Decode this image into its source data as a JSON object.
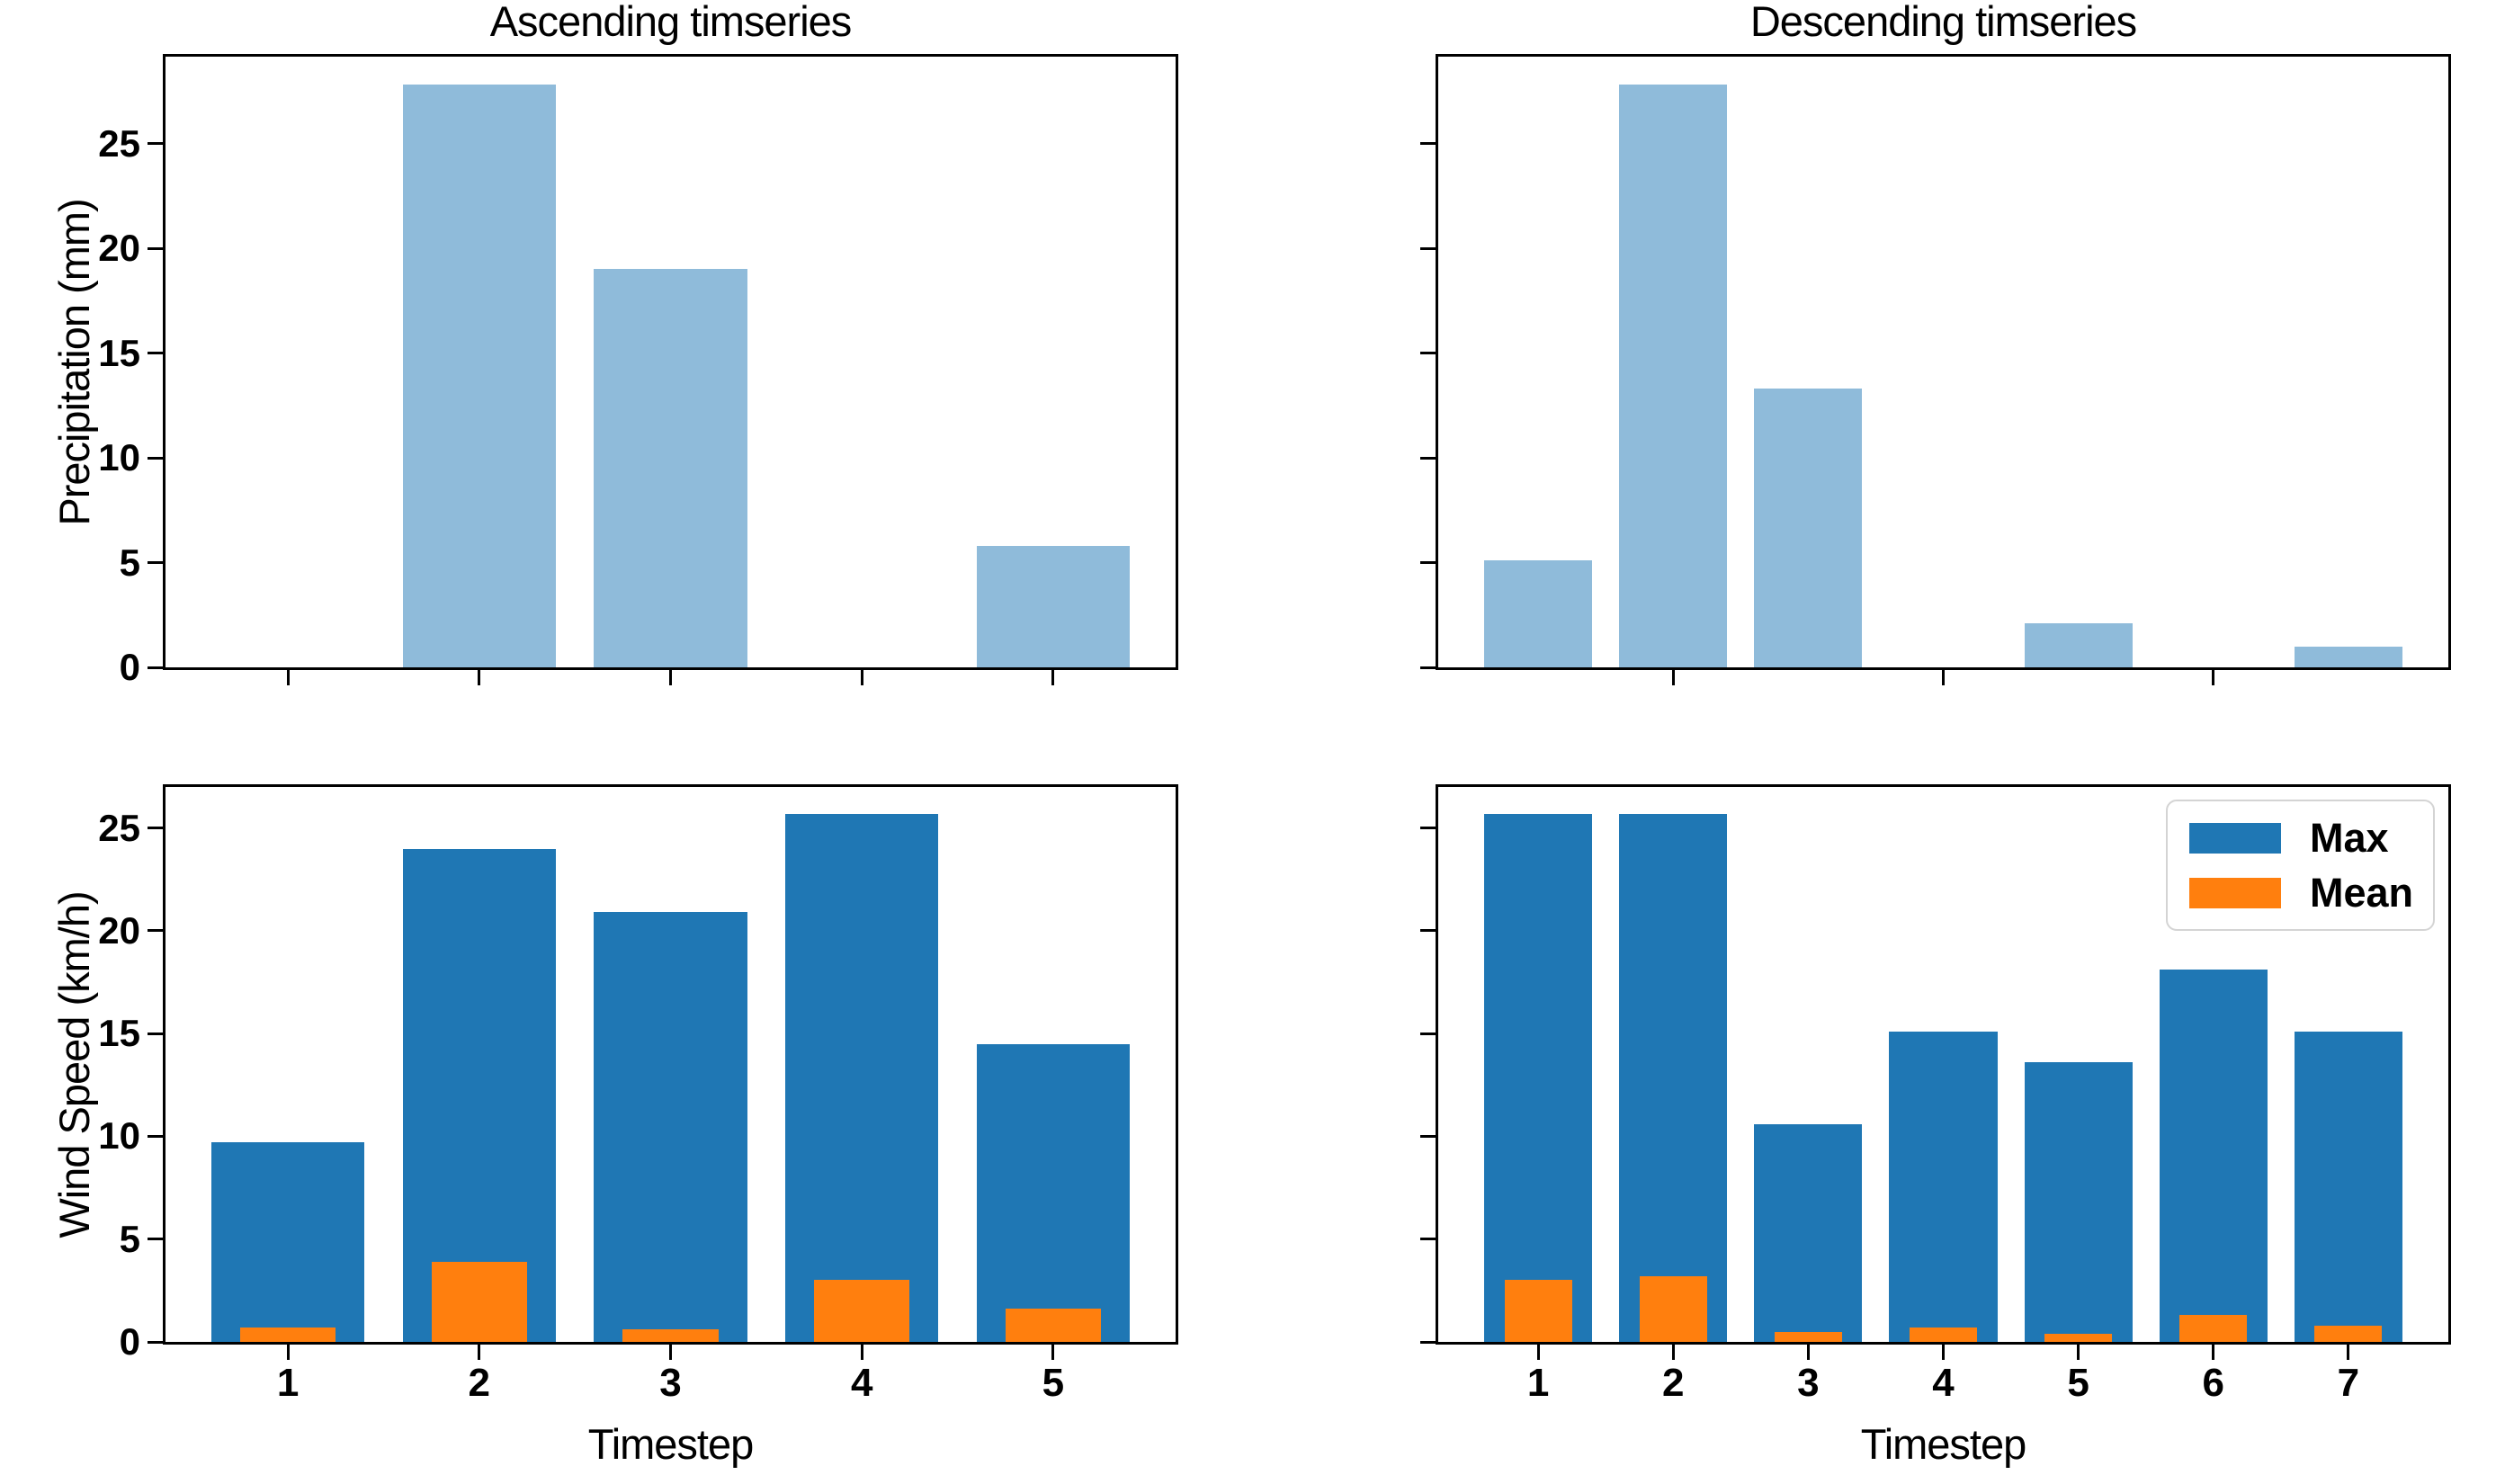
{
  "figure": {
    "background": "#ffffff",
    "kind": "matplotlib-style 2x2 bar chart figure"
  },
  "colors": {
    "max_bar": "#1f77b4",
    "mean_bar": "#ff7f0e",
    "precipitation_bar": "#8fbbda",
    "text": "#000000",
    "legend_border": "#d4d4d4"
  },
  "chart_data": [
    {
      "id": "precipitation-ascending",
      "type": "bar",
      "title": "Ascending timseries",
      "ylabel": "Precipitation (mm)",
      "xlabel": null,
      "categories": [
        1,
        2,
        3,
        4,
        5
      ],
      "xlim": [
        0.36,
        5.64
      ],
      "ylim": [
        0,
        29.15
      ],
      "yticks": [
        0,
        5,
        10,
        15,
        20,
        25
      ],
      "xticks": [
        1,
        2,
        3,
        4,
        5
      ],
      "show_ytick_labels": true,
      "show_xtick_labels": false,
      "grid": false,
      "series": [
        {
          "name": "Precipitation",
          "color": "#8fbbda",
          "bar_width": 0.8,
          "values": [
            0,
            27.8,
            19.0,
            0,
            5.8
          ]
        }
      ],
      "legend": null
    },
    {
      "id": "precipitation-descending",
      "type": "bar",
      "title": "Descending timseries",
      "ylabel": null,
      "xlabel": null,
      "categories": [
        1,
        2,
        3,
        4,
        5,
        6,
        7
      ],
      "xlim": [
        0.26,
        7.74
      ],
      "ylim": [
        0,
        29.15
      ],
      "yticks": [
        0,
        5,
        10,
        15,
        20,
        25
      ],
      "xticks": [
        2,
        4,
        6
      ],
      "show_ytick_labels": false,
      "show_xtick_labels": false,
      "grid": false,
      "series": [
        {
          "name": "Precipitation",
          "color": "#8fbbda",
          "bar_width": 0.8,
          "values": [
            5.1,
            27.8,
            13.3,
            0,
            2.1,
            0,
            1.0
          ]
        }
      ],
      "legend": null
    },
    {
      "id": "wind-speed-ascending",
      "type": "bar",
      "title": null,
      "ylabel": "Wind Speed (km/h)",
      "xlabel": "Timestep",
      "categories": [
        1,
        2,
        3,
        4,
        5
      ],
      "xlim": [
        0.36,
        5.64
      ],
      "ylim": [
        0,
        27.0
      ],
      "yticks": [
        0,
        5,
        10,
        15,
        20,
        25
      ],
      "xticks": [
        1,
        2,
        3,
        4,
        5
      ],
      "show_ytick_labels": true,
      "show_xtick_labels": true,
      "grid": false,
      "series": [
        {
          "name": "Max",
          "color": "#1f77b4",
          "bar_width": 0.8,
          "values": [
            9.7,
            24.0,
            20.9,
            25.7,
            14.5
          ]
        },
        {
          "name": "Mean",
          "color": "#ff7f0e",
          "bar_width": 0.5,
          "values": [
            0.7,
            3.9,
            0.6,
            3.0,
            1.6
          ]
        }
      ],
      "legend": null
    },
    {
      "id": "wind-speed-descending",
      "type": "bar",
      "title": null,
      "ylabel": null,
      "xlabel": "Timestep",
      "categories": [
        1,
        2,
        3,
        4,
        5,
        6,
        7
      ],
      "xlim": [
        0.26,
        7.74
      ],
      "ylim": [
        0,
        27.0
      ],
      "yticks": [
        0,
        5,
        10,
        15,
        20,
        25
      ],
      "xticks": [
        1,
        2,
        3,
        4,
        5,
        6,
        7
      ],
      "show_ytick_labels": false,
      "show_xtick_labels": true,
      "grid": false,
      "series": [
        {
          "name": "Max",
          "color": "#1f77b4",
          "bar_width": 0.8,
          "values": [
            25.7,
            25.7,
            10.6,
            15.1,
            13.6,
            18.1,
            15.1
          ]
        },
        {
          "name": "Mean",
          "color": "#ff7f0e",
          "bar_width": 0.5,
          "values": [
            3.0,
            3.2,
            0.5,
            0.7,
            0.4,
            1.3,
            0.8
          ]
        }
      ],
      "legend": {
        "position": "upper right",
        "entries": [
          "Max",
          "Mean"
        ]
      }
    }
  ]
}
